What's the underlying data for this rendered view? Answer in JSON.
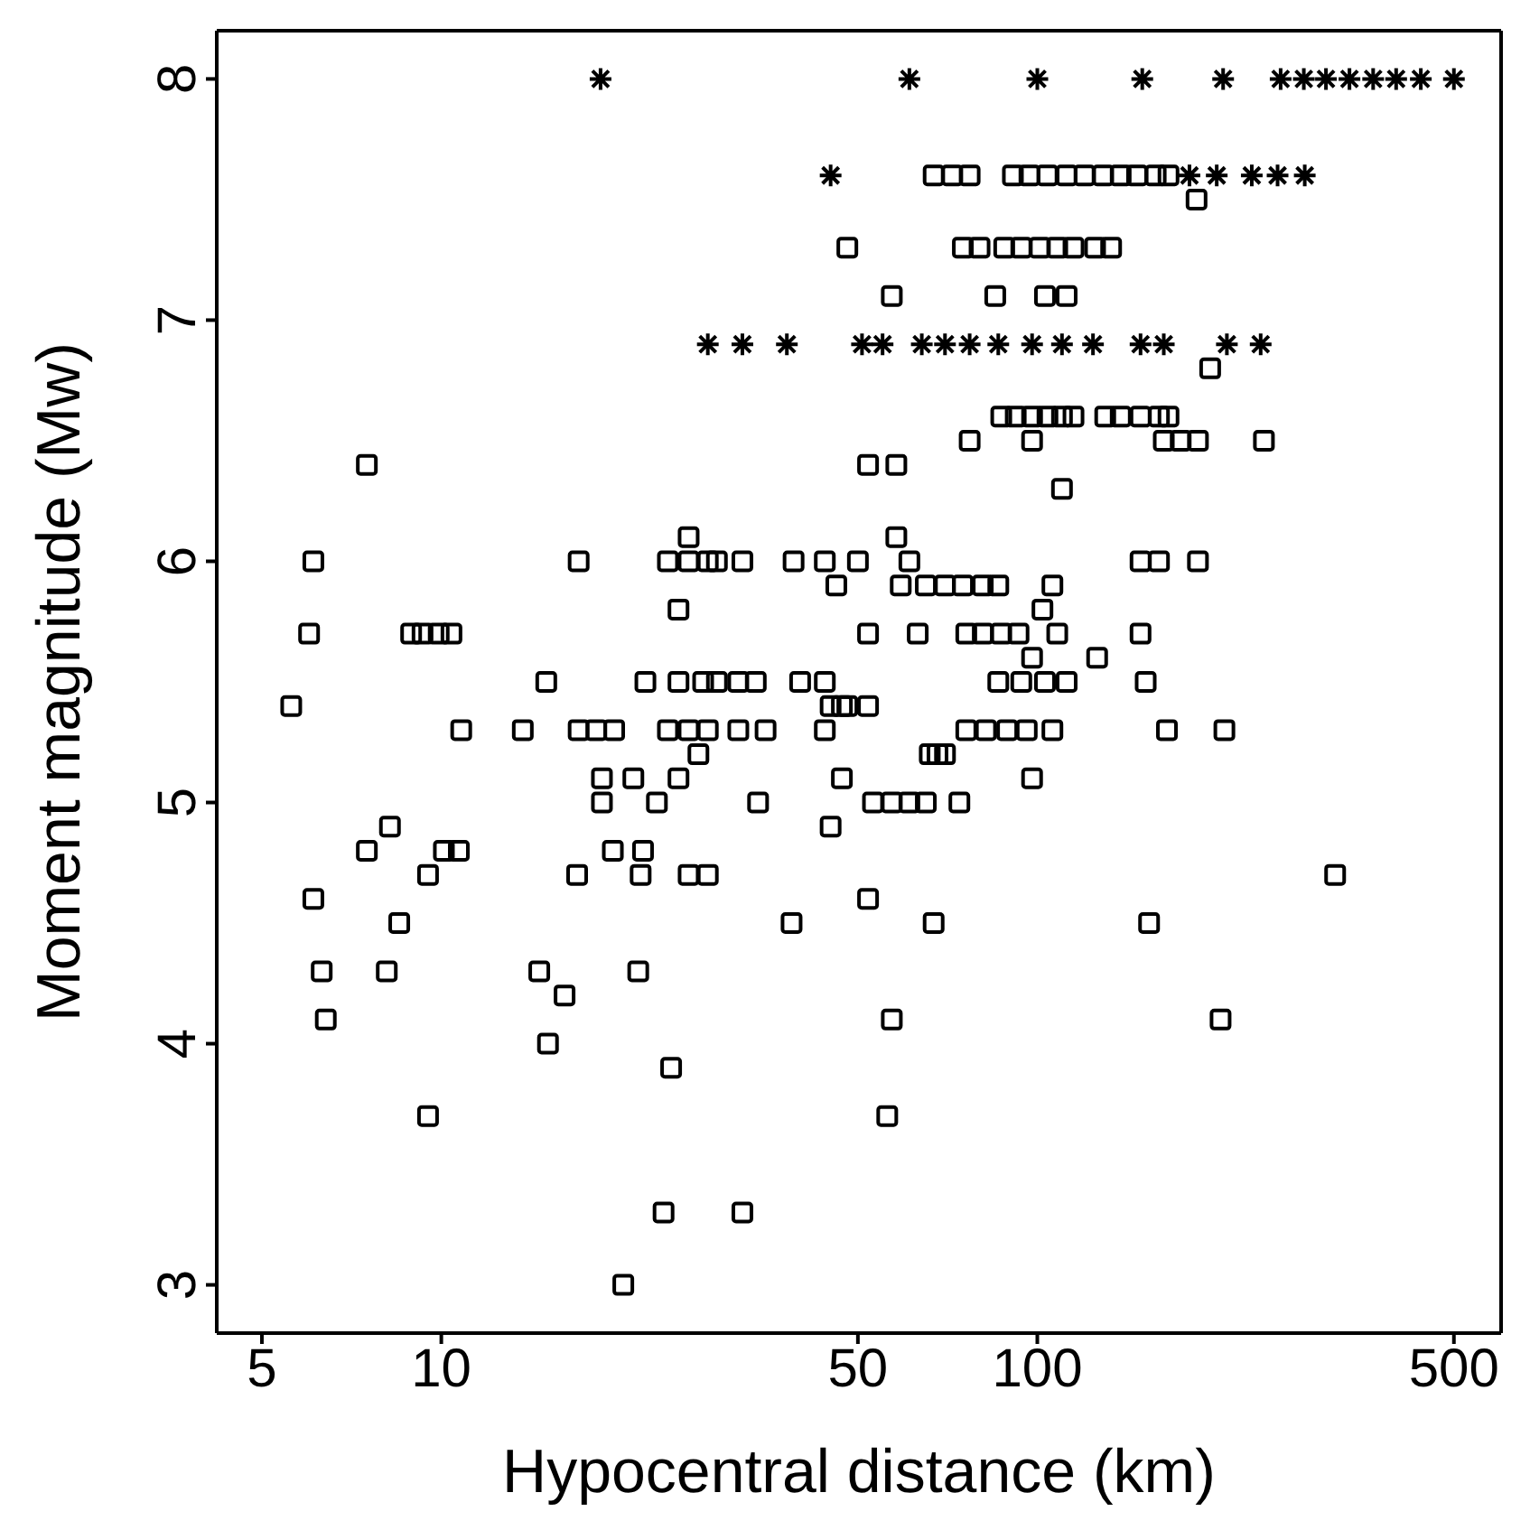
{
  "chart_data": {
    "type": "scatter",
    "xlabel": "Hypocentral distance (km)",
    "ylabel": "Moment magnitude (Mw)",
    "log": "x",
    "xlim": [
      4.2,
      600
    ],
    "xticks": [
      5,
      10,
      50,
      100,
      500
    ],
    "ylim": [
      2.8,
      8.2
    ],
    "yticks": [
      3,
      4,
      5,
      6,
      7,
      8
    ],
    "legend": false,
    "series": [
      {
        "color": "#000000",
        "marker": "square",
        "x": [
          67,
          72,
          77,
          91,
          97,
          104,
          112,
          120,
          129,
          138,
          147,
          158,
          166,
          185,
          48,
          75,
          80,
          88,
          94,
          101,
          108,
          115,
          125,
          133,
          57,
          85,
          103,
          112,
          195,
          87,
          92,
          98,
          104,
          110,
          115,
          130,
          138,
          149,
          160,
          166,
          77,
          98,
          163,
          174,
          186,
          240,
          7.5,
          52,
          58,
          110,
          58,
          26,
          6.1,
          17,
          24,
          26,
          28,
          29,
          32,
          39,
          44,
          50,
          61,
          149,
          160,
          186,
          46,
          59,
          65,
          70,
          75,
          81,
          86,
          106,
          25,
          102,
          6.0,
          8.9,
          9.3,
          9.9,
          10.4,
          52,
          63,
          76,
          81,
          87,
          93,
          108,
          149,
          98,
          126,
          15,
          22,
          25,
          27.5,
          29,
          31.5,
          33.7,
          40,
          44,
          86,
          94,
          103,
          112,
          152,
          47,
          45,
          48,
          52,
          5.6,
          10.8,
          13.7,
          17,
          18.2,
          19.5,
          24,
          26,
          28,
          31.5,
          35,
          44,
          76,
          82,
          89,
          96,
          106,
          165,
          206,
          27,
          66,
          68,
          70,
          18.6,
          21,
          25,
          47,
          98,
          18.6,
          23,
          34,
          53,
          57,
          61,
          65,
          74,
          45,
          8.2,
          7.5,
          10.1,
          10.7,
          19.4,
          21.8,
          9.5,
          16.9,
          21.6,
          26,
          28,
          316,
          6.1,
          52,
          8.5,
          38.7,
          67,
          154,
          6.3,
          8.1,
          14.6,
          21.4,
          16.1,
          6.4,
          57,
          203,
          15.1,
          24.3,
          9.5,
          56,
          23.6,
          32,
          20.2
        ],
        "values": [
          7.6,
          7.6,
          7.6,
          7.6,
          7.6,
          7.6,
          7.6,
          7.6,
          7.6,
          7.6,
          7.6,
          7.6,
          7.6,
          7.5,
          7.3,
          7.3,
          7.3,
          7.3,
          7.3,
          7.3,
          7.3,
          7.3,
          7.3,
          7.3,
          7.1,
          7.1,
          7.1,
          7.1,
          6.8,
          6.6,
          6.6,
          6.6,
          6.6,
          6.6,
          6.6,
          6.6,
          6.6,
          6.6,
          6.6,
          6.6,
          6.5,
          6.5,
          6.5,
          6.5,
          6.5,
          6.5,
          6.4,
          6.4,
          6.4,
          6.3,
          6.1,
          6.1,
          6.0,
          6.0,
          6.0,
          6.0,
          6.0,
          6.0,
          6.0,
          6.0,
          6.0,
          6.0,
          6.0,
          6.0,
          6.0,
          6.0,
          5.9,
          5.9,
          5.9,
          5.9,
          5.9,
          5.9,
          5.9,
          5.9,
          5.8,
          5.8,
          5.7,
          5.7,
          5.7,
          5.7,
          5.7,
          5.7,
          5.7,
          5.7,
          5.7,
          5.7,
          5.7,
          5.7,
          5.7,
          5.6,
          5.6,
          5.5,
          5.5,
          5.5,
          5.5,
          5.5,
          5.5,
          5.5,
          5.5,
          5.5,
          5.5,
          5.5,
          5.5,
          5.5,
          5.5,
          5.4,
          5.4,
          5.4,
          5.4,
          5.4,
          5.3,
          5.3,
          5.3,
          5.3,
          5.3,
          5.3,
          5.3,
          5.3,
          5.3,
          5.3,
          5.3,
          5.3,
          5.3,
          5.3,
          5.3,
          5.3,
          5.3,
          5.3,
          5.2,
          5.2,
          5.2,
          5.2,
          5.1,
          5.1,
          5.1,
          5.1,
          5.1,
          5.0,
          5.0,
          5.0,
          5.0,
          5.0,
          5.0,
          5.0,
          5.0,
          4.9,
          4.9,
          4.8,
          4.8,
          4.8,
          4.8,
          4.8,
          4.7,
          4.7,
          4.7,
          4.7,
          4.7,
          4.7,
          4.6,
          4.6,
          4.5,
          4.5,
          4.5,
          4.5,
          4.3,
          4.3,
          4.3,
          4.3,
          4.2,
          4.1,
          4.1,
          4.1,
          4.0,
          3.9,
          3.7,
          3.7,
          3.3,
          3.3,
          3.0
        ]
      },
      {
        "color": "#000000",
        "marker": "cross",
        "x": [
          18.5,
          61,
          100,
          150,
          205,
          256,
          280,
          305,
          334,
          366,
          400,
          440,
          500,
          45,
          180,
          200,
          229,
          253,
          281,
          28,
          32,
          38,
          50.8,
          55,
          64,
          70,
          77,
          86,
          98,
          110,
          124,
          149,
          163,
          208,
          237
        ],
        "values": [
          8,
          8,
          8,
          8,
          8,
          8,
          8,
          8,
          8,
          8,
          8,
          8,
          8,
          7.6,
          7.6,
          7.6,
          7.6,
          7.6,
          7.6,
          6.9,
          6.9,
          6.9,
          6.9,
          6.9,
          6.9,
          6.9,
          6.9,
          6.9,
          6.9,
          6.9,
          6.9,
          6.9,
          6.9,
          6.9,
          6.9
        ]
      }
    ]
  }
}
